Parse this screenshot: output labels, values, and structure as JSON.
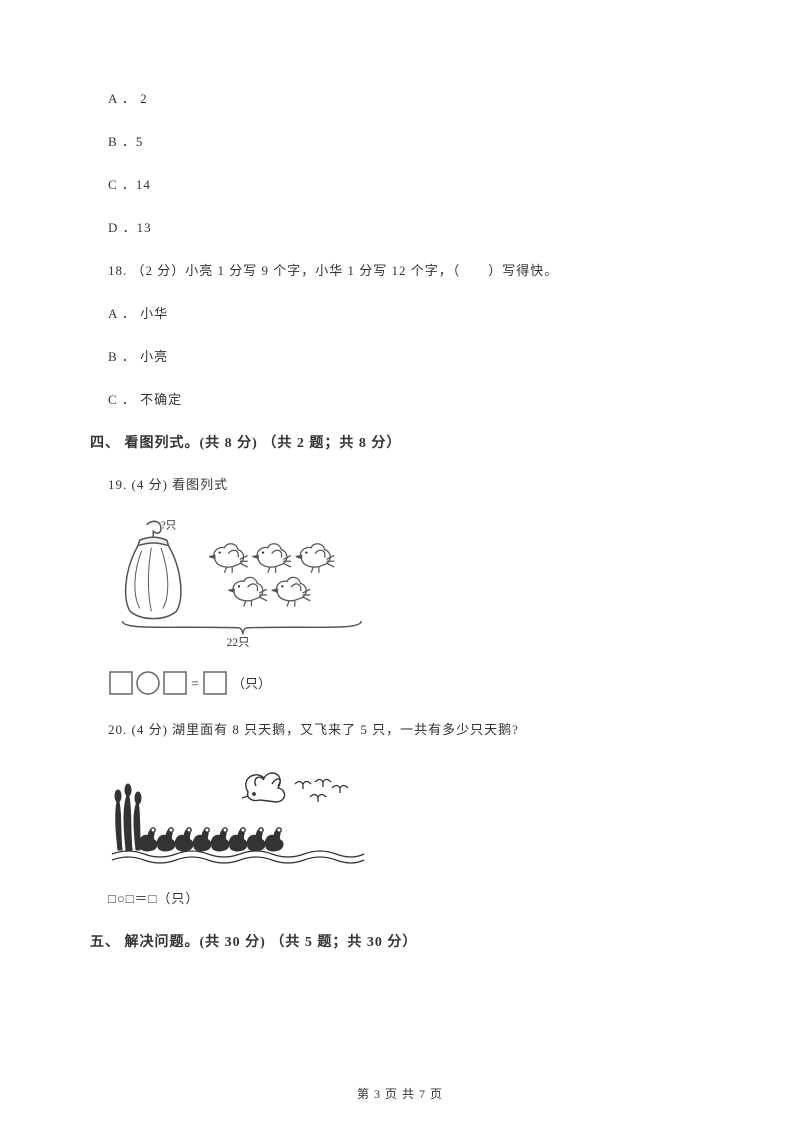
{
  "options_q17": {
    "a": "A ． 2",
    "b": "B ．5",
    "c": "C ．14",
    "d": "D ．13"
  },
  "q18": {
    "text": "18. （2 分）小亮 1 分写 9 个字，小华 1 分写 12 个字，（　　）写得快。",
    "a": "A ． 小华",
    "b": "B ． 小亮",
    "c": "C ． 不确定"
  },
  "section4": {
    "header": "四、 看图列式。(共 8 分) （共 2 题；共 8 分）"
  },
  "q19": {
    "text": "19.  (4 分) 看图列式",
    "illustration": {
      "bracket_label": "22只",
      "bag_label": "?只",
      "bird_count": 5,
      "colors": {
        "stroke": "#555555",
        "fill": "#ffffff",
        "light": "#888888"
      }
    },
    "equation": {
      "suffix": "（只）",
      "box_stroke": "#666666",
      "circle_stroke": "#666666"
    }
  },
  "q20": {
    "text": "20.  (4 分) 湖里面有 8 只天鹅，又飞来了 5 只，一共有多少只天鹅?",
    "illustration": {
      "swans_in_water": 8,
      "flying_swans": 5,
      "colors": {
        "stroke": "#333333",
        "fill": "#ffffff"
      }
    },
    "equation_text": "□○□＝□（只）"
  },
  "section5": {
    "header": "五、 解决问题。(共 30 分) （共 5 题；共 30 分）"
  },
  "footer": "第 3 页 共 7 页"
}
